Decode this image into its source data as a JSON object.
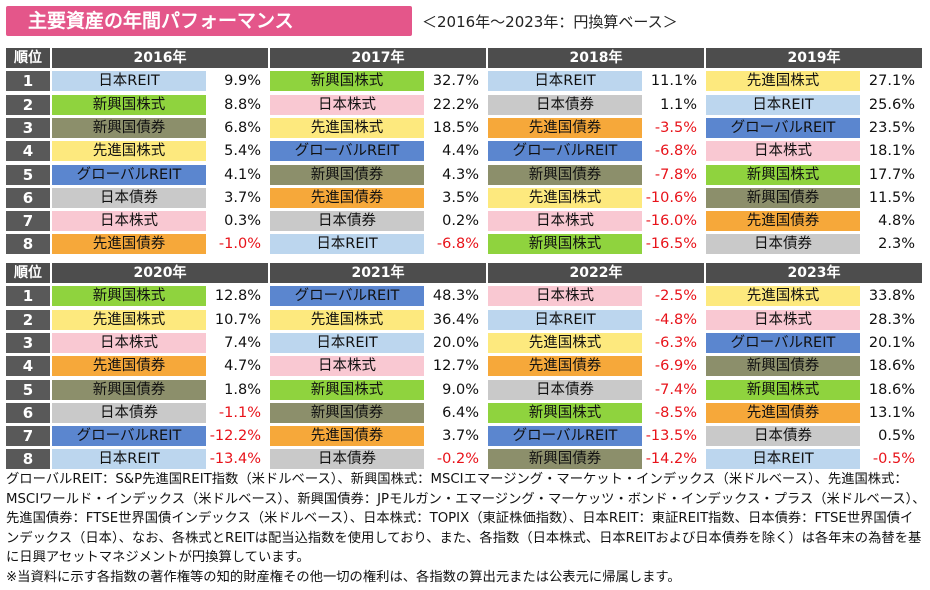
{
  "title": "主要資産の年間パフォーマンス",
  "subtitle": "＜2016年～2023年：円換算ベース＞",
  "rank_header": "順位",
  "ranks": [
    "1",
    "2",
    "3",
    "4",
    "5",
    "6",
    "7",
    "8"
  ],
  "asset_colors": {
    "日本REIT": "#bcd6ee",
    "新興国株式": "#8fd33e",
    "新興国債券": "#8c8f6b",
    "先進国株式": "#fde97e",
    "グローバルREIT": "#5b86cf",
    "日本債券": "#c9c9c9",
    "日本株式": "#f9c8d2",
    "先進国債券": "#f6a83a"
  },
  "chart_data": {
    "type": "table",
    "years": [
      {
        "year": "2016年",
        "rows": [
          {
            "asset": "日本REIT",
            "value": "9.9%"
          },
          {
            "asset": "新興国株式",
            "value": "8.8%"
          },
          {
            "asset": "新興国債券",
            "value": "6.8%"
          },
          {
            "asset": "先進国株式",
            "value": "5.4%"
          },
          {
            "asset": "グローバルREIT",
            "value": "4.1%"
          },
          {
            "asset": "日本債券",
            "value": "3.7%"
          },
          {
            "asset": "日本株式",
            "value": "0.3%"
          },
          {
            "asset": "先進国債券",
            "value": "-1.0%"
          }
        ]
      },
      {
        "year": "2017年",
        "rows": [
          {
            "asset": "新興国株式",
            "value": "32.7%"
          },
          {
            "asset": "日本株式",
            "value": "22.2%"
          },
          {
            "asset": "先進国株式",
            "value": "18.5%"
          },
          {
            "asset": "グローバルREIT",
            "value": "4.4%"
          },
          {
            "asset": "新興国債券",
            "value": "4.3%"
          },
          {
            "asset": "先進国債券",
            "value": "3.5%"
          },
          {
            "asset": "日本債券",
            "value": "0.2%"
          },
          {
            "asset": "日本REIT",
            "value": "-6.8%"
          }
        ]
      },
      {
        "year": "2018年",
        "rows": [
          {
            "asset": "日本REIT",
            "value": "11.1%"
          },
          {
            "asset": "日本債券",
            "value": "1.1%"
          },
          {
            "asset": "先進国債券",
            "value": "-3.5%"
          },
          {
            "asset": "グローバルREIT",
            "value": "-6.8%"
          },
          {
            "asset": "新興国債券",
            "value": "-7.8%"
          },
          {
            "asset": "先進国株式",
            "value": "-10.6%"
          },
          {
            "asset": "日本株式",
            "value": "-16.0%"
          },
          {
            "asset": "新興国株式",
            "value": "-16.5%"
          }
        ]
      },
      {
        "year": "2019年",
        "rows": [
          {
            "asset": "先進国株式",
            "value": "27.1%"
          },
          {
            "asset": "日本REIT",
            "value": "25.6%"
          },
          {
            "asset": "グローバルREIT",
            "value": "23.5%"
          },
          {
            "asset": "日本株式",
            "value": "18.1%"
          },
          {
            "asset": "新興国株式",
            "value": "17.7%"
          },
          {
            "asset": "新興国債券",
            "value": "11.5%"
          },
          {
            "asset": "先進国債券",
            "value": "4.8%"
          },
          {
            "asset": "日本債券",
            "value": "2.3%"
          }
        ]
      },
      {
        "year": "2020年",
        "rows": [
          {
            "asset": "新興国株式",
            "value": "12.8%"
          },
          {
            "asset": "先進国株式",
            "value": "10.7%"
          },
          {
            "asset": "日本株式",
            "value": "7.4%"
          },
          {
            "asset": "先進国債券",
            "value": "4.7%"
          },
          {
            "asset": "新興国債券",
            "value": "1.8%"
          },
          {
            "asset": "日本債券",
            "value": "-1.1%"
          },
          {
            "asset": "グローバルREIT",
            "value": "-12.2%"
          },
          {
            "asset": "日本REIT",
            "value": "-13.4%"
          }
        ]
      },
      {
        "year": "2021年",
        "rows": [
          {
            "asset": "グローバルREIT",
            "value": "48.3%"
          },
          {
            "asset": "先進国株式",
            "value": "36.4%"
          },
          {
            "asset": "日本REIT",
            "value": "20.0%"
          },
          {
            "asset": "日本株式",
            "value": "12.7%"
          },
          {
            "asset": "新興国株式",
            "value": "9.0%"
          },
          {
            "asset": "新興国債券",
            "value": "6.4%"
          },
          {
            "asset": "先進国債券",
            "value": "3.7%"
          },
          {
            "asset": "日本債券",
            "value": "-0.2%"
          }
        ]
      },
      {
        "year": "2022年",
        "rows": [
          {
            "asset": "日本株式",
            "value": "-2.5%"
          },
          {
            "asset": "日本REIT",
            "value": "-4.8%"
          },
          {
            "asset": "先進国株式",
            "value": "-6.3%"
          },
          {
            "asset": "先進国債券",
            "value": "-6.9%"
          },
          {
            "asset": "日本債券",
            "value": "-7.4%"
          },
          {
            "asset": "新興国株式",
            "value": "-8.5%"
          },
          {
            "asset": "グローバルREIT",
            "value": "-13.5%"
          },
          {
            "asset": "新興国債券",
            "value": "-14.2%"
          }
        ]
      },
      {
        "year": "2023年",
        "rows": [
          {
            "asset": "先進国株式",
            "value": "33.8%"
          },
          {
            "asset": "日本株式",
            "value": "28.3%"
          },
          {
            "asset": "グローバルREIT",
            "value": "20.1%"
          },
          {
            "asset": "新興国債券",
            "value": "18.6%"
          },
          {
            "asset": "新興国株式",
            "value": "18.6%"
          },
          {
            "asset": "先進国債券",
            "value": "13.1%"
          },
          {
            "asset": "日本債券",
            "value": "0.5%"
          },
          {
            "asset": "日本REIT",
            "value": "-0.5%"
          }
        ]
      }
    ]
  },
  "notes": [
    "グローバルREIT：S&P先進国REIT指数（米ドルベース）、新興国株式：MSCIエマージング・マーケット・インデックス（米ドルベース）、先進国株式：MSCIワールド・インデックス（米ドルベース）、新興国債券：JPモルガン・エマージング・マーケッツ・ボンド・インデックス・プラス（米ドルベース）、先進国債券：FTSE世界国債インデックス（米ドルベース）、日本株式：TOPIX（東証株価指数）、日本REIT：東証REIT指数、日本債券：FTSE世界国債インデックス（日本）、なお、各株式とREITは配当込指数を使用しており、また、各指数（日本株式、日本REITおよび日本債券を除く）は各年末の為替を基に日興アセットマネジメントが円換算しています。",
    "※当資料に示す各指数の著作権等の知的財産権その他一切の権利は、各指数の算出元または公表元に帰属します。"
  ]
}
